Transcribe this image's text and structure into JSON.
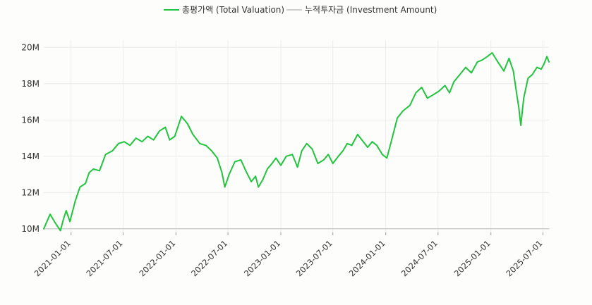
{
  "chart_data": {
    "type": "line",
    "title": "",
    "xlabel": "",
    "ylabel": "",
    "legend_position": "top-center",
    "grid": true,
    "ylim": [
      9800000,
      20400000
    ],
    "y_ticks": [
      10000000,
      12000000,
      14000000,
      16000000,
      18000000,
      20000000
    ],
    "y_tick_labels": [
      "10M",
      "12M",
      "14M",
      "16M",
      "18M",
      "20M"
    ],
    "x_range": [
      "2020-09-28",
      "2025-07-22"
    ],
    "x_ticks": [
      "2021-01-01",
      "2021-07-01",
      "2022-01-01",
      "2022-07-01",
      "2023-01-01",
      "2023-07-01",
      "2024-01-01",
      "2024-07-01",
      "2025-01-01",
      "2025-07-01"
    ],
    "series": [
      {
        "name": "총평가액 (Total Valuation)",
        "color": "#22c43f",
        "x": [
          "2020-09-28",
          "2020-10-20",
          "2020-11-08",
          "2020-11-25",
          "2020-12-05",
          "2020-12-15",
          "2020-12-28",
          "2021-01-15",
          "2021-02-01",
          "2021-02-20",
          "2021-03-05",
          "2021-03-20",
          "2021-04-10",
          "2021-05-01",
          "2021-05-25",
          "2021-06-15",
          "2021-07-05",
          "2021-07-25",
          "2021-08-15",
          "2021-09-05",
          "2021-09-25",
          "2021-10-15",
          "2021-11-05",
          "2021-11-25",
          "2021-12-10",
          "2021-12-28",
          "2022-01-20",
          "2022-02-10",
          "2022-03-01",
          "2022-03-25",
          "2022-04-15",
          "2022-05-05",
          "2022-05-25",
          "2022-06-10",
          "2022-06-20",
          "2022-07-05",
          "2022-07-25",
          "2022-08-15",
          "2022-09-01",
          "2022-09-20",
          "2022-10-05",
          "2022-10-15",
          "2022-10-30",
          "2022-11-15",
          "2022-12-01",
          "2022-12-15",
          "2023-01-01",
          "2023-01-20",
          "2023-02-10",
          "2023-02-28",
          "2023-03-15",
          "2023-04-01",
          "2023-04-20",
          "2023-05-10",
          "2023-05-30",
          "2023-06-15",
          "2023-07-01",
          "2023-07-20",
          "2023-08-05",
          "2023-08-20",
          "2023-09-05",
          "2023-09-25",
          "2023-10-15",
          "2023-10-30",
          "2023-11-15",
          "2023-12-01",
          "2023-12-20",
          "2024-01-05",
          "2024-01-20",
          "2024-02-10",
          "2024-03-01",
          "2024-03-25",
          "2024-04-15",
          "2024-05-05",
          "2024-05-25",
          "2024-06-15",
          "2024-07-05",
          "2024-07-25",
          "2024-08-10",
          "2024-08-25",
          "2024-09-15",
          "2024-10-05",
          "2024-10-25",
          "2024-11-15",
          "2024-12-01",
          "2024-12-20",
          "2025-01-05",
          "2025-01-25",
          "2025-02-15",
          "2025-03-05",
          "2025-03-20",
          "2025-04-01",
          "2025-04-08",
          "2025-04-15",
          "2025-04-25",
          "2025-05-10",
          "2025-05-25",
          "2025-06-10",
          "2025-06-25",
          "2025-07-05",
          "2025-07-15",
          "2025-07-22"
        ],
        "values": [
          10000000,
          10800000,
          10300000,
          9900000,
          10500000,
          11000000,
          10400000,
          11500000,
          12300000,
          12500000,
          13100000,
          13300000,
          13200000,
          14100000,
          14300000,
          14700000,
          14800000,
          14600000,
          15000000,
          14800000,
          15100000,
          14900000,
          15400000,
          15600000,
          14900000,
          15100000,
          16200000,
          15800000,
          15200000,
          14700000,
          14600000,
          14300000,
          13900000,
          13100000,
          12300000,
          13000000,
          13700000,
          13800000,
          13200000,
          12600000,
          12900000,
          12300000,
          12700000,
          13300000,
          13600000,
          13900000,
          13500000,
          14000000,
          14100000,
          13400000,
          14300000,
          14700000,
          14400000,
          13600000,
          13800000,
          14100000,
          13600000,
          14000000,
          14300000,
          14700000,
          14600000,
          15200000,
          14800000,
          14500000,
          14800000,
          14600000,
          14100000,
          13900000,
          14800000,
          16100000,
          16500000,
          16800000,
          17500000,
          17800000,
          17200000,
          17400000,
          17600000,
          17900000,
          17500000,
          18100000,
          18500000,
          18900000,
          18600000,
          19200000,
          19300000,
          19500000,
          19700000,
          19200000,
          18700000,
          19400000,
          18700000,
          17400000,
          16700000,
          15700000,
          17200000,
          18300000,
          18500000,
          18900000,
          18800000,
          19100000,
          19500000,
          19200000
        ]
      },
      {
        "name": "누적투자금 (Investment Amount)",
        "color": "#cfcfcf",
        "x": [
          "2020-09-28",
          "2025-07-22"
        ],
        "values": [
          10000000,
          10000000
        ]
      }
    ]
  }
}
